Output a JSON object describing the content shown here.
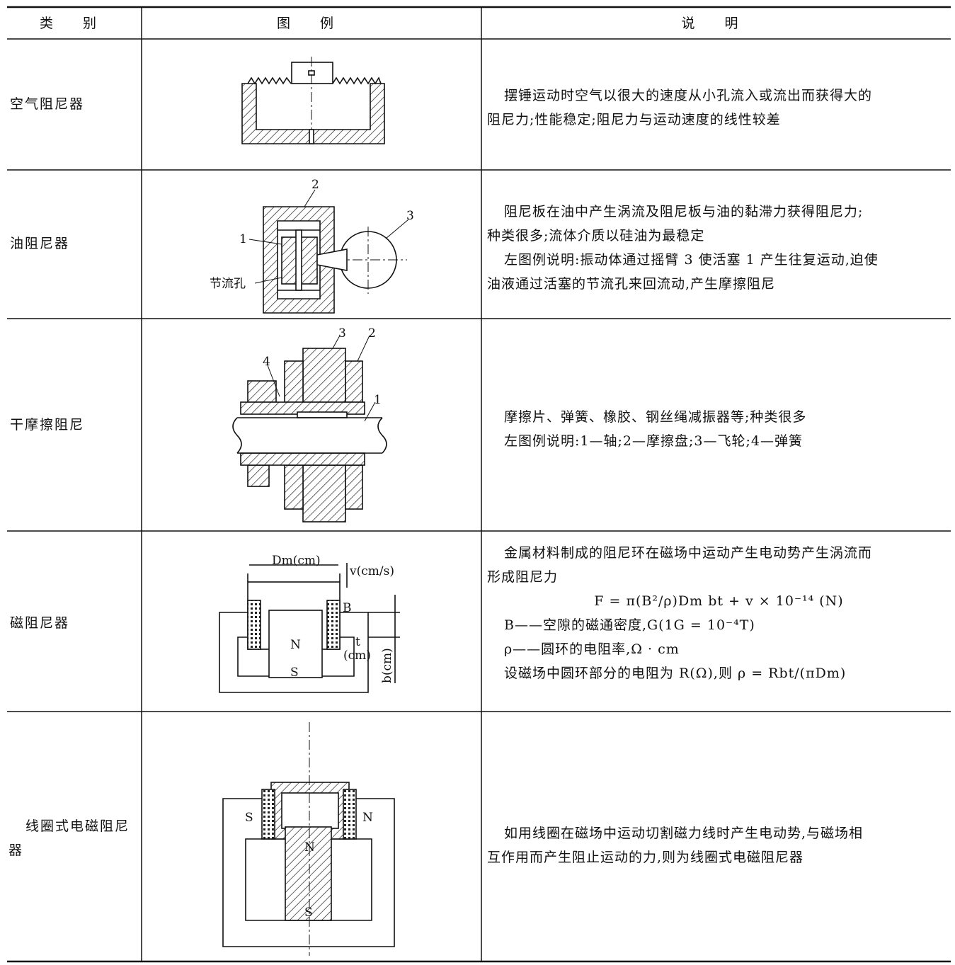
{
  "header": [
    "类 别",
    "图 例",
    "说 明"
  ],
  "rows": [
    {
      "category": "空气阻尼器",
      "figure_labels": [],
      "description": [
        "摆锤运动时空气以很大的速度从小孔流入或流出而获得大的",
        "阻尼力;性能稳定;阻尼力与运动速度的线性较差"
      ]
    },
    {
      "category": "油阻尼器",
      "figure_labels": [
        "2",
        "3",
        "1",
        "节流孔"
      ],
      "description": [
        "阻尼板在油中产生涡流及阻尼板与油的黏滞力获得阻尼力;",
        "种类很多;流体介质以硅油为最稳定",
        "左图例说明:振动体通过摇臂 3 使活塞 1 产生往复运动,迫使",
        "油液通过活塞的节流孔来回流动,产生摩擦阻尼"
      ]
    },
    {
      "category": "干摩擦阻尼",
      "figure_labels": [
        "3",
        "2",
        "4",
        "1"
      ],
      "description": [
        "摩擦片、弹簧、橡胶、钢丝绳减振器等;种类很多",
        "左图例说明:1—轴;2—摩擦盘;3—飞轮;4—弹簧"
      ]
    },
    {
      "category": "磁阻尼器",
      "figure_labels": [
        "Dm(cm)",
        "v(cm/s)",
        "B",
        "N",
        "S",
        "t",
        "(cm)",
        "b(cm)"
      ],
      "description": [
        "金属材料制成的阻尼环在磁场中运动产生电动势产生涡流而",
        "形成阻尼力",
        "F = π(B²/ρ)Dm bt + v × 10⁻¹⁴ (N)",
        "B——空隙的磁通密度,G(1G = 10⁻⁴T)",
        "ρ——圆环的电阻率,Ω · cm",
        "设磁场中圆环部分的电阻为 R(Ω),则 ρ = Rbt/(πDm)"
      ]
    },
    {
      "category": "线圈式电磁阻尼器",
      "figure_labels": [
        "S",
        "N",
        "N",
        "S"
      ],
      "description": [
        "如用线圈在磁场中运动切割磁力线时产生电动势,与磁场相",
        "互作用而产生阻止运动的力,则为线圈式电磁阻尼器"
      ]
    }
  ]
}
